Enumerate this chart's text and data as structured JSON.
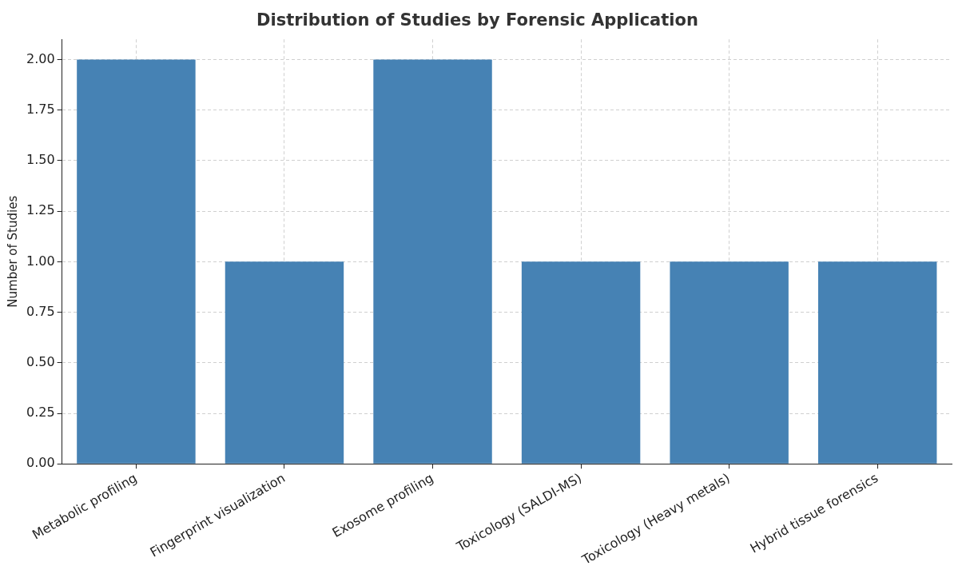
{
  "chart_data": {
    "type": "bar",
    "title": "Distribution of Studies by Forensic Application",
    "ylabel": "Number of Studies",
    "categories": [
      "Metabolic profiling",
      "Fingerprint visualization",
      "Exosome profiling",
      "Toxicology (SALDI-MS)",
      "Toxicology (Heavy metals)",
      "Hybrid tissue forensics"
    ],
    "values": [
      2,
      1,
      2,
      1,
      1,
      1
    ],
    "color": "#4682b4",
    "ylim": [
      0,
      2.1
    ],
    "yticks": [
      {
        "value": 0,
        "label": "0.00"
      },
      {
        "value": 0.25,
        "label": "0.25"
      },
      {
        "value": 0.5,
        "label": "0.50"
      },
      {
        "value": 0.75,
        "label": "0.75"
      },
      {
        "value": 1,
        "label": "1.00"
      },
      {
        "value": 1.25,
        "label": "1.25"
      },
      {
        "value": 1.5,
        "label": "1.50"
      },
      {
        "value": 1.75,
        "label": "1.75"
      },
      {
        "value": 2,
        "label": "2.00"
      }
    ],
    "grid": true,
    "legend": false
  }
}
